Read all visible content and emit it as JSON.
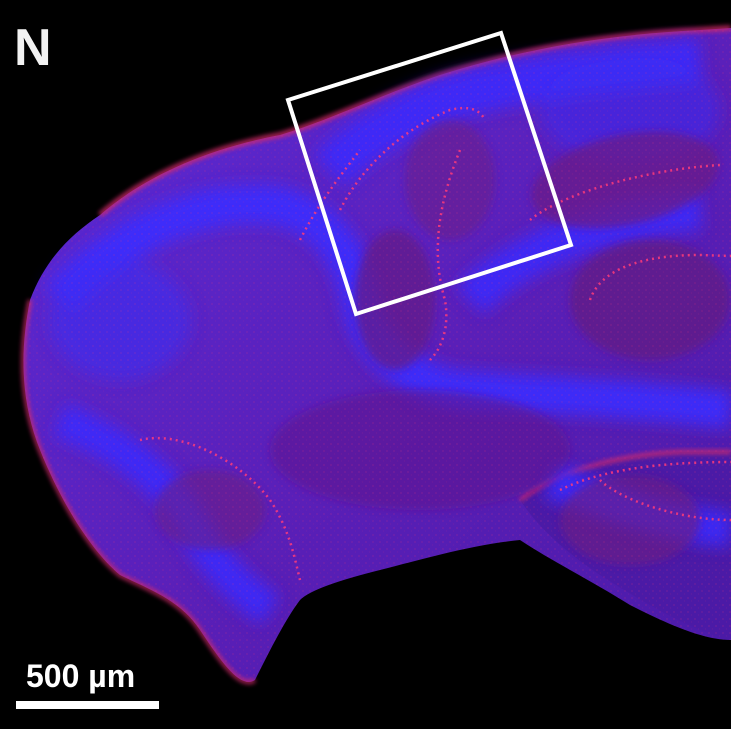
{
  "panel": {
    "letter": "N"
  },
  "scale_bar": {
    "label": "500 µm"
  },
  "colors": {
    "background": "#000000",
    "nuclear_stain": "#3a1fe6",
    "cell_stain": "#e0205a",
    "annotation": "#ffffff"
  }
}
